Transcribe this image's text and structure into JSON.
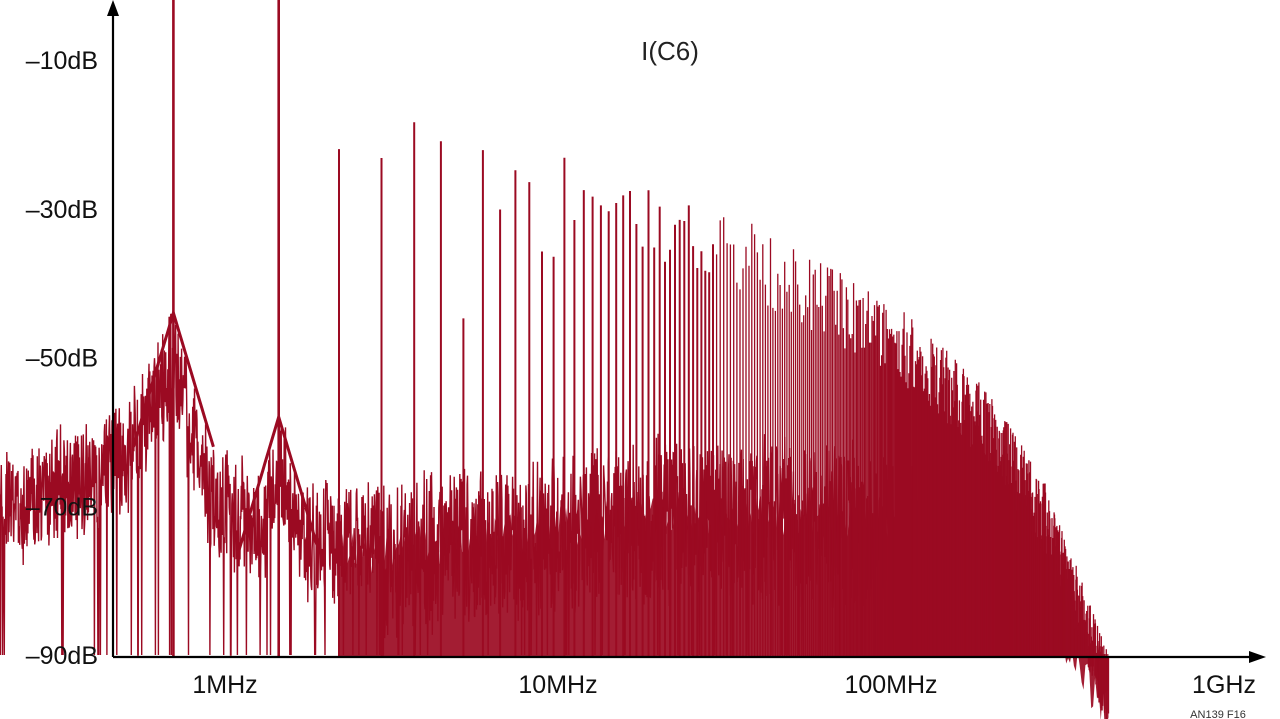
{
  "chart_data": {
    "type": "line",
    "trace_label": "I(C6)",
    "figure_id": "AN139 F16",
    "x_scale": "log",
    "xlim_hz": [
      200000,
      1000000000
    ],
    "ylim_db": [
      -90,
      3
    ],
    "x_ticks": [
      {
        "value": 1000000,
        "label": "1MHz"
      },
      {
        "value": 10000000,
        "label": "10MHz"
      },
      {
        "value": 100000000,
        "label": "100MHz"
      },
      {
        "value": 1000000000,
        "label": "1GHz"
      }
    ],
    "y_ticks": [
      {
        "value": -10,
        "label": "–10dB"
      },
      {
        "value": -30,
        "label": "–30dB"
      },
      {
        "value": -50,
        "label": "–50dB"
      },
      {
        "value": -70,
        "label": "–70dB"
      },
      {
        "value": -90,
        "label": "–90dB"
      }
    ],
    "line_color": "#9b0a22",
    "axis_color": "#000000",
    "harmonic_peaks": [
      {
        "f_hz": 700000,
        "db": 3
      },
      {
        "f_hz": 1450000,
        "db": -1
      },
      {
        "f_hz": 2200000,
        "db": -19
      },
      {
        "f_hz": 2950000,
        "db": -21
      },
      {
        "f_hz": 3700000,
        "db": -16
      },
      {
        "f_hz": 4450000,
        "db": -20
      },
      {
        "f_hz": 5200000,
        "db": -41
      },
      {
        "f_hz": 5950000,
        "db": -22
      },
      {
        "f_hz": 6700000,
        "db": -30
      },
      {
        "f_hz": 7450000,
        "db": -22
      },
      {
        "f_hz": 8200000,
        "db": -23
      },
      {
        "f_hz": 8950000,
        "db": -32
      },
      {
        "f_hz": 9700000,
        "db": -36
      },
      {
        "f_hz": 10450000,
        "db": -23
      },
      {
        "f_hz": 11200000,
        "db": -28
      },
      {
        "f_hz": 11950000,
        "db": -24
      },
      {
        "f_hz": 12700000,
        "db": -27
      },
      {
        "f_hz": 13450000,
        "db": -28
      },
      {
        "f_hz": 14950000,
        "db": -26
      },
      {
        "f_hz": 20000000,
        "db": -27
      },
      {
        "f_hz": 30000000,
        "db": -29
      },
      {
        "f_hz": 50000000,
        "db": -35
      },
      {
        "f_hz": 80000000,
        "db": -40
      },
      {
        "f_hz": 120000000,
        "db": -45
      },
      {
        "f_hz": 200000000,
        "db": -55
      },
      {
        "f_hz": 300000000,
        "db": -68
      },
      {
        "f_hz": 450000000,
        "db": -90
      }
    ],
    "resonance_floor": [
      {
        "f_hz": 200000,
        "db": -64
      },
      {
        "f_hz": 500000,
        "db": -57
      },
      {
        "f_hz": 700000,
        "db": -44
      },
      {
        "f_hz": 900000,
        "db": -62
      },
      {
        "f_hz": 1300000,
        "db": -66
      },
      {
        "f_hz": 1450000,
        "db": -58
      },
      {
        "f_hz": 1700000,
        "db": -68
      },
      {
        "f_hz": 3000000,
        "db": -67
      },
      {
        "f_hz": 10000000,
        "db": -64
      },
      {
        "f_hz": 20000000,
        "db": -62
      },
      {
        "f_hz": 50000000,
        "db": -62
      },
      {
        "f_hz": 100000000,
        "db": -63
      },
      {
        "f_hz": 200000000,
        "db": -68
      },
      {
        "f_hz": 300000000,
        "db": -76
      },
      {
        "f_hz": 450000000,
        "db": -90
      }
    ]
  }
}
